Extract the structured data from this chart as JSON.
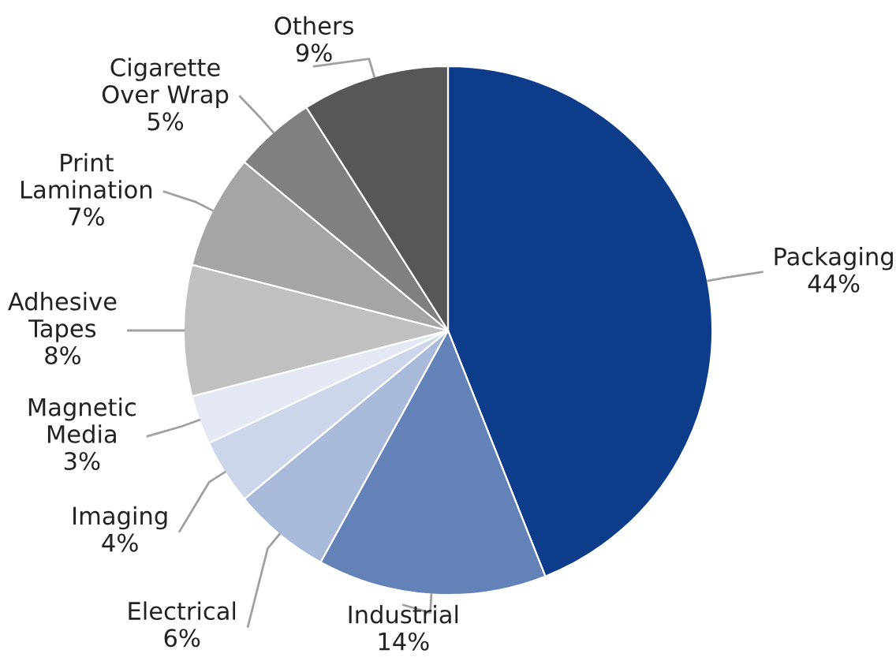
{
  "chart_data": {
    "type": "pie",
    "categories": [
      "Packaging",
      "Industrial",
      "Electrical",
      "Imaging",
      "Magnetic Media",
      "Adhesive Tapes",
      "Print Lamination",
      "Cigarette Over Wrap",
      "Others"
    ],
    "values": [
      44,
      14,
      6,
      4,
      3,
      8,
      7,
      5,
      9
    ],
    "colors": [
      "#0d3d8a",
      "#6382b8",
      "#a9b9da",
      "#ccd5ea",
      "#e3e8f4",
      "#c0c0c0",
      "#a5a5a5",
      "#808080",
      "#575757"
    ],
    "value_labels": [
      "44%",
      "14%",
      "6%",
      "4%",
      "3%",
      "8%",
      "7%",
      "5%",
      "9%"
    ],
    "legend": false
  }
}
